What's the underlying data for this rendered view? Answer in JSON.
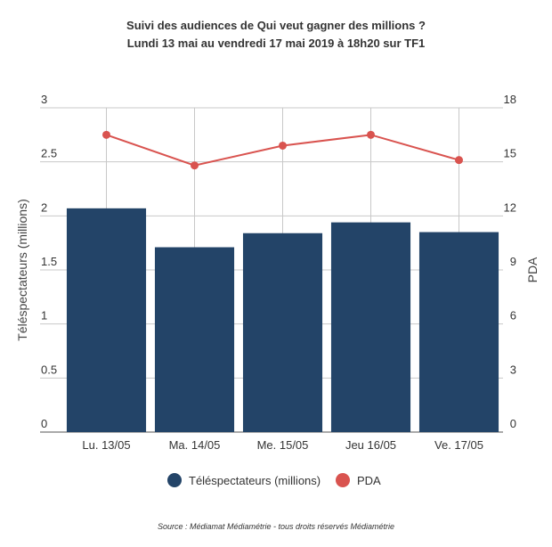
{
  "colors": {
    "bar": "#234468",
    "line": "#d9534f",
    "grid": "#c8c8c8",
    "baseline": "#555555"
  },
  "chart_data": {
    "type": "bar",
    "title": "Suivi des audiences de Qui veut gagner des millions ?",
    "subtitle": "Lundi 13 mai au vendredi 17 mai 2019 à 18h20 sur TF1",
    "categories": [
      "Lu. 13/05",
      "Ma. 14/05",
      "Me. 15/05",
      "Jeu 16/05",
      "Ve. 17/05"
    ],
    "series": [
      {
        "name": "Téléspectateurs (millions)",
        "type": "bar",
        "axis": "left",
        "values": [
          2.07,
          1.71,
          1.84,
          1.94,
          1.85
        ]
      },
      {
        "name": "PDA",
        "type": "line",
        "axis": "right",
        "values": [
          16.5,
          14.8,
          15.9,
          16.5,
          15.1
        ]
      }
    ],
    "y_left": {
      "label": "Téléspectateurs (millions)",
      "range": [
        0,
        3
      ],
      "ticks": [
        "0",
        "0.5",
        "1",
        "1.5",
        "2",
        "2.5",
        "3"
      ]
    },
    "y_right": {
      "label": "PDA",
      "range": [
        0,
        18
      ],
      "ticks": [
        "0",
        "3",
        "6",
        "9",
        "12",
        "15",
        "18"
      ]
    },
    "grid": true,
    "legend_position": "bottom"
  },
  "source": "Source : Médiamat Médiamétrie - tous droits réservés Médiamétrie"
}
